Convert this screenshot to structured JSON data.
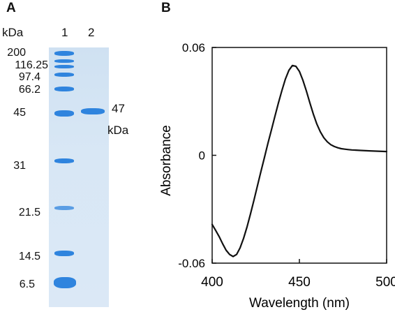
{
  "panel_a": {
    "label": "A",
    "unit_label": "kDa",
    "lane_labels": [
      "1",
      "2"
    ],
    "markers": [
      "200",
      "116.25",
      "97.4",
      "66.2",
      "45",
      "31",
      "21.5",
      "14.5",
      "6.5"
    ],
    "band_annotation_value": "47",
    "band_annotation_unit": "kDa",
    "gel_color": "#d6e6f5",
    "band_color": "#2f84de"
  },
  "panel_b": {
    "label": "B"
  },
  "chart_data": {
    "type": "line",
    "title": "",
    "xlabel": "Wavelength (nm)",
    "ylabel": "Absorbance",
    "xlim": [
      400,
      500
    ],
    "ylim": [
      -0.06,
      0.06
    ],
    "x_ticks": [
      "400",
      "450",
      "500"
    ],
    "y_ticks": [
      "0.06",
      "0",
      "-0.06"
    ],
    "grid": false,
    "series": [
      {
        "x": [
          400,
          402,
          404,
          406,
          408,
          410,
          412,
          414,
          416,
          418,
          420,
          422,
          424,
          426,
          428,
          430,
          432,
          434,
          436,
          438,
          440,
          442,
          444,
          446,
          448,
          450,
          452,
          454,
          456,
          458,
          460,
          462,
          464,
          466,
          468,
          470,
          472,
          474,
          476,
          478,
          480,
          485,
          490,
          495,
          500
        ],
        "y": [
          -0.0385,
          -0.0418,
          -0.0452,
          -0.0492,
          -0.0528,
          -0.0552,
          -0.0563,
          -0.0552,
          -0.0515,
          -0.0462,
          -0.0398,
          -0.0325,
          -0.0248,
          -0.0168,
          -0.0088,
          -0.0011,
          0.0068,
          0.0142,
          0.0218,
          0.0292,
          0.0361,
          0.0425,
          0.0473,
          0.05,
          0.0495,
          0.0467,
          0.0418,
          0.0358,
          0.0292,
          0.0229,
          0.0174,
          0.0131,
          0.0098,
          0.0075,
          0.0059,
          0.0049,
          0.0042,
          0.0037,
          0.0034,
          0.0032,
          0.003,
          0.0027,
          0.0025,
          0.0023,
          0.0021
        ],
        "color": "#111111"
      }
    ]
  }
}
